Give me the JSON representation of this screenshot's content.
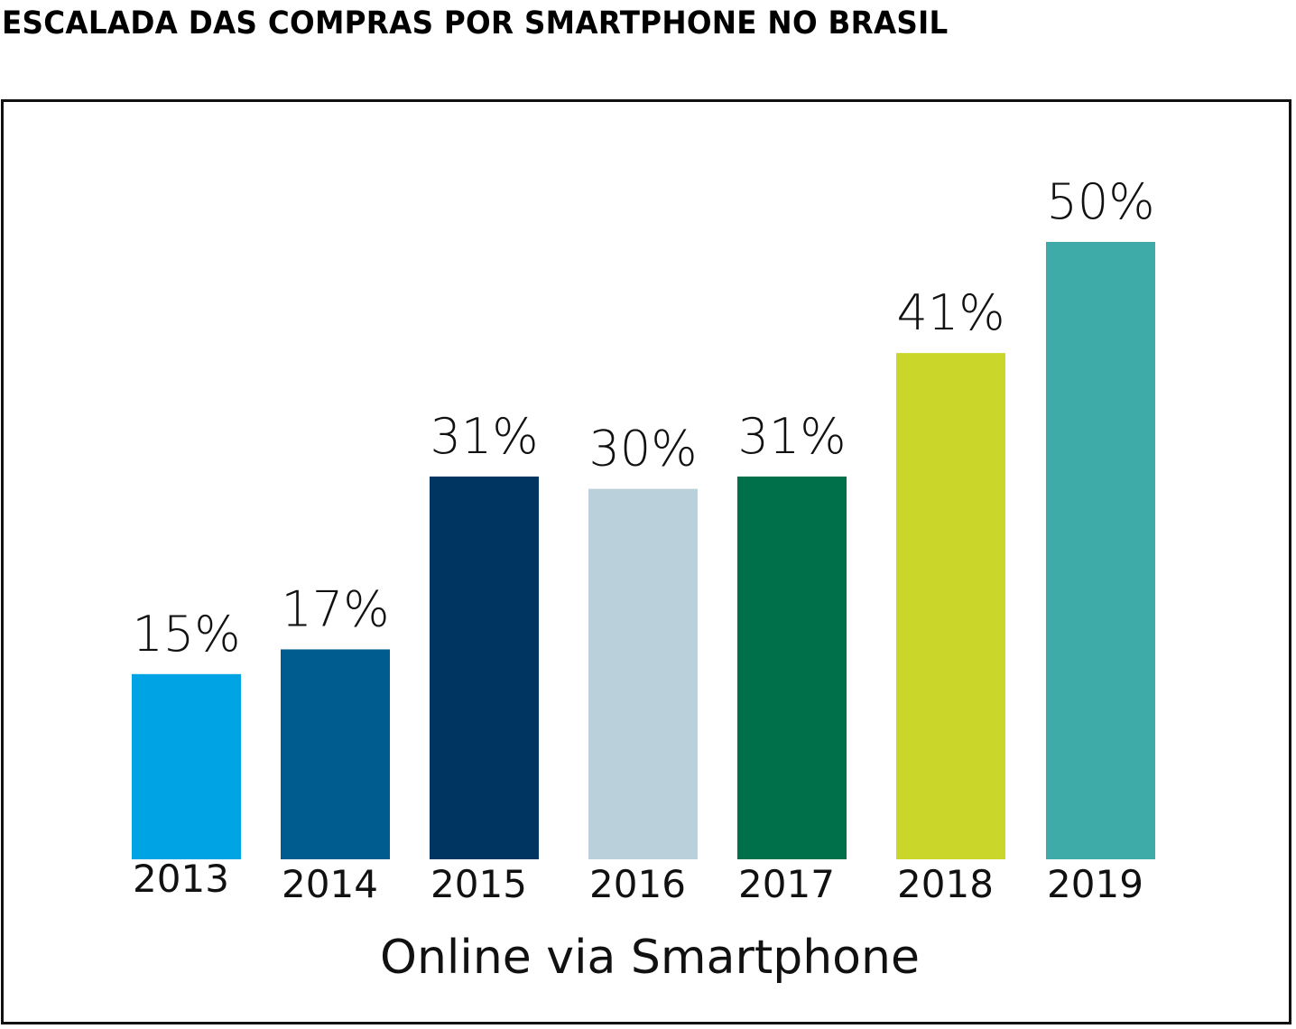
{
  "title": "ESCALADA DAS COMPRAS POR SMARTPHONE NO BRASIL",
  "chart_data": {
    "type": "bar",
    "title": "ESCALADA DAS COMPRAS POR SMARTPHONE NO BRASIL",
    "xlabel": "Online via Smartphone",
    "ylabel": "",
    "categories": [
      "2013",
      "2014",
      "2015",
      "2016",
      "2017",
      "2018",
      "2019"
    ],
    "values": [
      15,
      17,
      31,
      30,
      31,
      41,
      50
    ],
    "value_labels": [
      "15%",
      "17%",
      "31%",
      "30%",
      "31%",
      "41%",
      "50%"
    ],
    "colors": [
      "#00A3E4",
      "#005C8E",
      "#003461",
      "#BAD1DC",
      "#00704A",
      "#CAD62A",
      "#3EABA8"
    ],
    "ylim": [
      0,
      50
    ],
    "grid": false,
    "legend": "none",
    "unit": "%"
  }
}
